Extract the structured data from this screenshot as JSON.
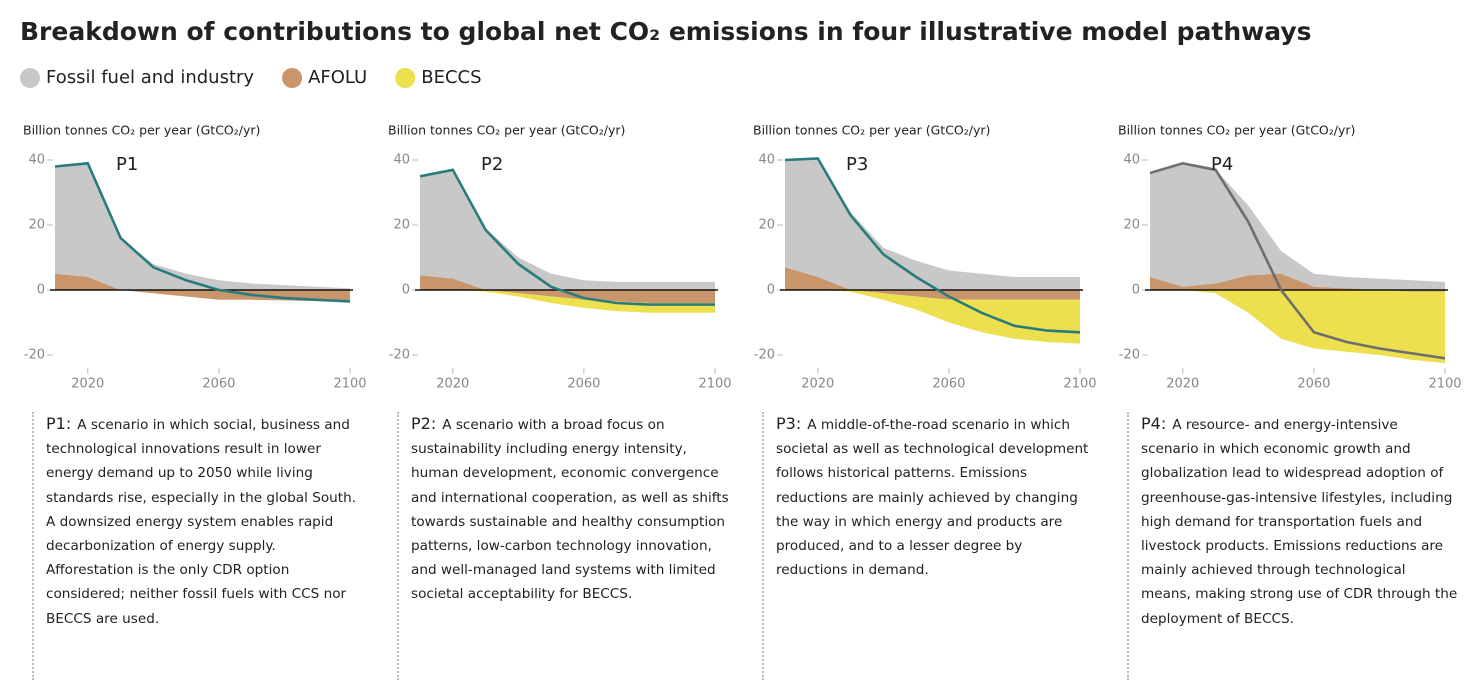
{
  "title": "Breakdown of contributions to global net CO₂ emissions in four illustrative model pathways",
  "chart_data": [
    {
      "type": "area",
      "panel_label": "P1",
      "y_label": "Billion tonnes CO₂ per year (GtCO₂/yr)",
      "x": [
        2010,
        2020,
        2030,
        2040,
        2050,
        2060,
        2070,
        2080,
        2090,
        2100
      ],
      "xlim": [
        2010,
        2100
      ],
      "xticks": [
        2020,
        2060,
        2100
      ],
      "ylim": [
        -22,
        42
      ],
      "yticks": [
        40,
        20,
        0,
        -20
      ],
      "series": [
        {
          "name": "Fossil fuel and industry",
          "color": "#c8c8c8",
          "values": [
            33,
            35,
            16,
            8,
            5,
            3,
            2,
            1.5,
            1,
            0.5
          ]
        },
        {
          "name": "AFOLU",
          "color": "#c9956b",
          "values": [
            5,
            4,
            0,
            -1,
            -2,
            -3,
            -3,
            -3.2,
            -3.4,
            -3.5
          ]
        },
        {
          "name": "BECCS",
          "color": "#ece04e",
          "values": [
            0,
            0,
            0,
            0,
            0,
            0,
            0,
            0,
            0,
            0
          ]
        }
      ],
      "line": {
        "color": "#2a7c7c",
        "values": [
          38,
          39,
          16,
          7,
          3,
          0,
          -1.5,
          -2.5,
          -3,
          -3.5
        ]
      },
      "description_label": "P1:",
      "description": "A scenario in which social, business and technological innovations result in lower energy demand up to 2050 while living standards rise, especially in the global South. A downsized energy system enables rapid decarbonization of energy supply. Afforestation is the only CDR option considered; neither fossil fuels with CCS nor BECCS are used."
    },
    {
      "type": "area",
      "panel_label": "P2",
      "y_label": "Billion tonnes CO₂ per year (GtCO₂/yr)",
      "x": [
        2010,
        2020,
        2030,
        2040,
        2050,
        2060,
        2070,
        2080,
        2090,
        2100
      ],
      "xlim": [
        2010,
        2100
      ],
      "xticks": [
        2020,
        2060,
        2100
      ],
      "ylim": [
        -22,
        42
      ],
      "yticks": [
        40,
        20,
        0,
        -20
      ],
      "series": [
        {
          "color": "#c8c8c8",
          "values": [
            30.5,
            33.5,
            19,
            10,
            5,
            3,
            2.5,
            2.5,
            2.5,
            2.5
          ]
        },
        {
          "color": "#c9956b",
          "values": [
            4.5,
            3.5,
            0,
            -1,
            -2,
            -3,
            -3.5,
            -4,
            -4,
            -4
          ]
        },
        {
          "color": "#ece04e",
          "values": [
            0,
            0,
            -0.5,
            -1,
            -2,
            -2.5,
            -3,
            -3,
            -3,
            -3
          ]
        }
      ],
      "line": {
        "color": "#2a7c7c",
        "values": [
          35,
          37,
          18.5,
          8,
          1,
          -2.5,
          -4,
          -4.5,
          -4.5,
          -4.5
        ]
      },
      "description_label": "P2:",
      "description": "A scenario with a broad focus on sustainability including energy intensity, human development, economic convergence and international cooperation, as well as shifts towards sustainable and healthy consumption patterns, low-carbon technology innovation, and well-managed land systems with limited societal acceptability for BECCS."
    },
    {
      "type": "area",
      "panel_label": "P3",
      "y_label": "Billion tonnes CO₂ per year (GtCO₂/yr)",
      "x": [
        2010,
        2020,
        2030,
        2040,
        2050,
        2060,
        2070,
        2080,
        2090,
        2100
      ],
      "xlim": [
        2010,
        2100
      ],
      "xticks": [
        2020,
        2060,
        2100
      ],
      "ylim": [
        -22,
        42
      ],
      "yticks": [
        40,
        20,
        0,
        -20
      ],
      "series": [
        {
          "color": "#c8c8c8",
          "values": [
            33,
            36.5,
            24,
            13,
            9,
            6,
            5,
            4,
            4,
            4
          ]
        },
        {
          "color": "#c9956b",
          "values": [
            7,
            4,
            0,
            -1,
            -2,
            -3,
            -3,
            -3,
            -3,
            -3
          ]
        },
        {
          "color": "#ece04e",
          "values": [
            0,
            0,
            -0.5,
            -2,
            -4,
            -7,
            -10,
            -12,
            -13,
            -13.5
          ]
        }
      ],
      "line": {
        "color": "#2a7c7c",
        "values": [
          40,
          40.5,
          23,
          11,
          4,
          -2,
          -7,
          -11,
          -12.5,
          -13
        ]
      },
      "description_label": "P3:",
      "description": "A middle-of-the-road scenario in which societal as well as technological development follows historical patterns. Emissions reductions are mainly achieved by changing the way in which energy and products are produced, and to a lesser degree by reductions in demand."
    },
    {
      "type": "area",
      "panel_label": "P4",
      "y_label": "Billion tonnes CO₂ per year (GtCO₂/yr)",
      "x": [
        2010,
        2020,
        2030,
        2040,
        2050,
        2060,
        2070,
        2080,
        2090,
        2100
      ],
      "xlim": [
        2010,
        2100
      ],
      "xticks": [
        2020,
        2060,
        2100
      ],
      "ylim": [
        -22,
        42
      ],
      "yticks": [
        40,
        20,
        0,
        -20
      ],
      "series": [
        {
          "color": "#c8c8c8",
          "values": [
            32,
            38,
            35,
            21.5,
            7,
            4,
            3.5,
            3.5,
            3,
            2.5
          ]
        },
        {
          "color": "#c9956b",
          "values": [
            4,
            1,
            2,
            4.5,
            5,
            1,
            0.5,
            0,
            -0.5,
            -0.5
          ]
        },
        {
          "color": "#ece04e",
          "values": [
            0,
            0,
            -1,
            -7,
            -15,
            -18,
            -19,
            -20,
            -21,
            -22
          ]
        }
      ],
      "line": {
        "color": "#6e6e6e",
        "values": [
          36,
          39,
          37,
          21,
          0,
          -13,
          -16,
          -18,
          -19.5,
          -21
        ]
      },
      "description_label": "P4:",
      "description": "A resource- and energy-intensive scenario in which economic growth and globalization lead to widespread adoption of greenhouse-gas-intensive lifestyles, including high demand for transportation fuels and livestock products. Emissions reductions are mainly achieved through technological means, making strong use of CDR through the deployment of BECCS."
    }
  ]
}
